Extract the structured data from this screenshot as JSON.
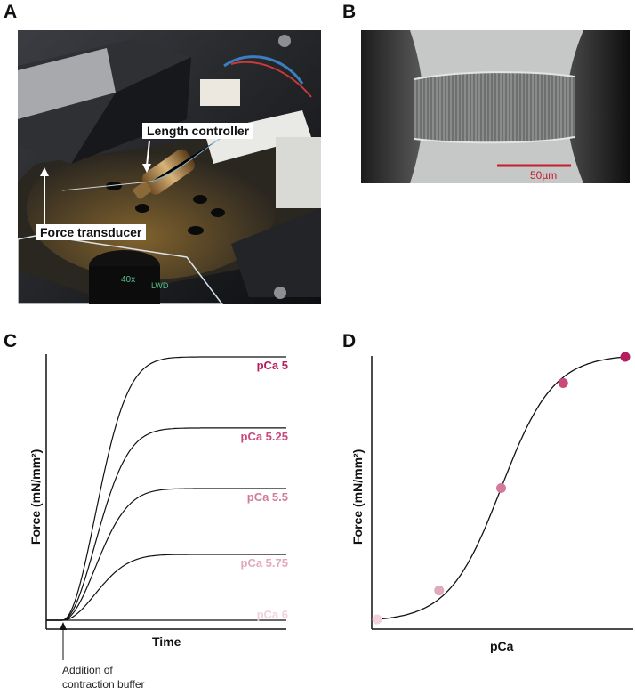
{
  "panel_labels": {
    "a": "A",
    "b": "B",
    "c": "C",
    "d": "D"
  },
  "photo_a": {
    "callout_length": "Length controller",
    "callout_force": "Force transducer",
    "lens_label": "40x",
    "lens_label_2": "LWD"
  },
  "photo_b": {
    "scale_bar_label": "50µm",
    "scale_bar_color": "#c2202f"
  },
  "chart_data": [
    {
      "type": "line",
      "title": "",
      "xlabel": "Time",
      "ylabel": "Force (mN/mm²)",
      "annotation": [
        "Addition of",
        "contraction buffer"
      ],
      "series": [
        {
          "name": "pCa 5",
          "plateau": 1.0,
          "color": "#b51e5e"
        },
        {
          "name": "pCa 5.25",
          "plateau": 0.73,
          "color": "#c84a7a"
        },
        {
          "name": "pCa 5.5",
          "plateau": 0.5,
          "color": "#d27a9b"
        },
        {
          "name": "pCa 5.75",
          "plateau": 0.25,
          "color": "#e2a8bd"
        },
        {
          "name": "pCa 6",
          "plateau": 0.0,
          "color": "#f0d3dd"
        }
      ]
    },
    {
      "type": "scatter",
      "title": "",
      "xlabel": "pCa",
      "ylabel": "Force (mN/mm²)",
      "points": [
        {
          "x": 0.0,
          "y": 0.0,
          "color": "#f0d3dd"
        },
        {
          "x": 0.25,
          "y": 0.11,
          "color": "#e2a8bd"
        },
        {
          "x": 0.5,
          "y": 0.5,
          "color": "#d27a9b"
        },
        {
          "x": 0.75,
          "y": 0.9,
          "color": "#c84a7a"
        },
        {
          "x": 1.0,
          "y": 1.0,
          "color": "#b51e5e"
        }
      ]
    }
  ]
}
